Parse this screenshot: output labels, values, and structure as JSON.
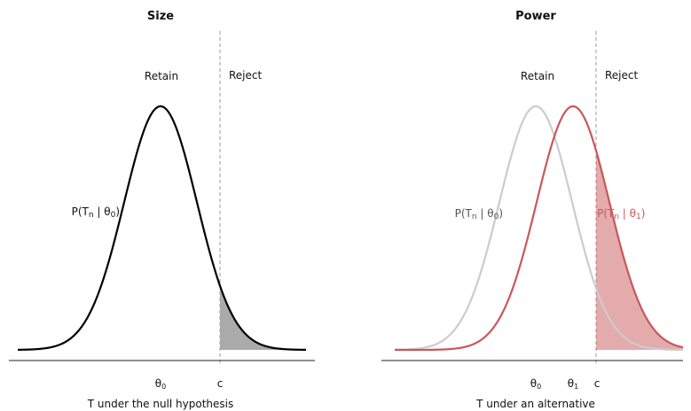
{
  "panels": [
    {
      "title": "Size",
      "retain": "Retain",
      "reject": "Reject",
      "axis_label": "T under the null hypothesis",
      "ticks": [
        {
          "sym": "θ",
          "sub": "0"
        },
        {
          "sym": "c"
        }
      ],
      "curve_labels": [
        {
          "a": "P(T",
          "s1": "n",
          "b": " | θ",
          "s2": "0",
          "c": ")"
        }
      ]
    },
    {
      "title": "Power",
      "retain": "Retain",
      "reject": "Reject",
      "axis_label": "T under an alternative",
      "ticks": [
        {
          "sym": "θ",
          "sub": "0"
        },
        {
          "sym": "θ",
          "sub": "1"
        },
        {
          "sym": "c"
        }
      ],
      "curve_labels": [
        {
          "a": "P(T",
          "s1": "n",
          "b": " | θ",
          "s2": "0",
          "c": ")"
        },
        {
          "a": "P(T",
          "s1": "n",
          "b": " | θ",
          "s2": "1",
          "c": ")"
        }
      ]
    }
  ]
}
